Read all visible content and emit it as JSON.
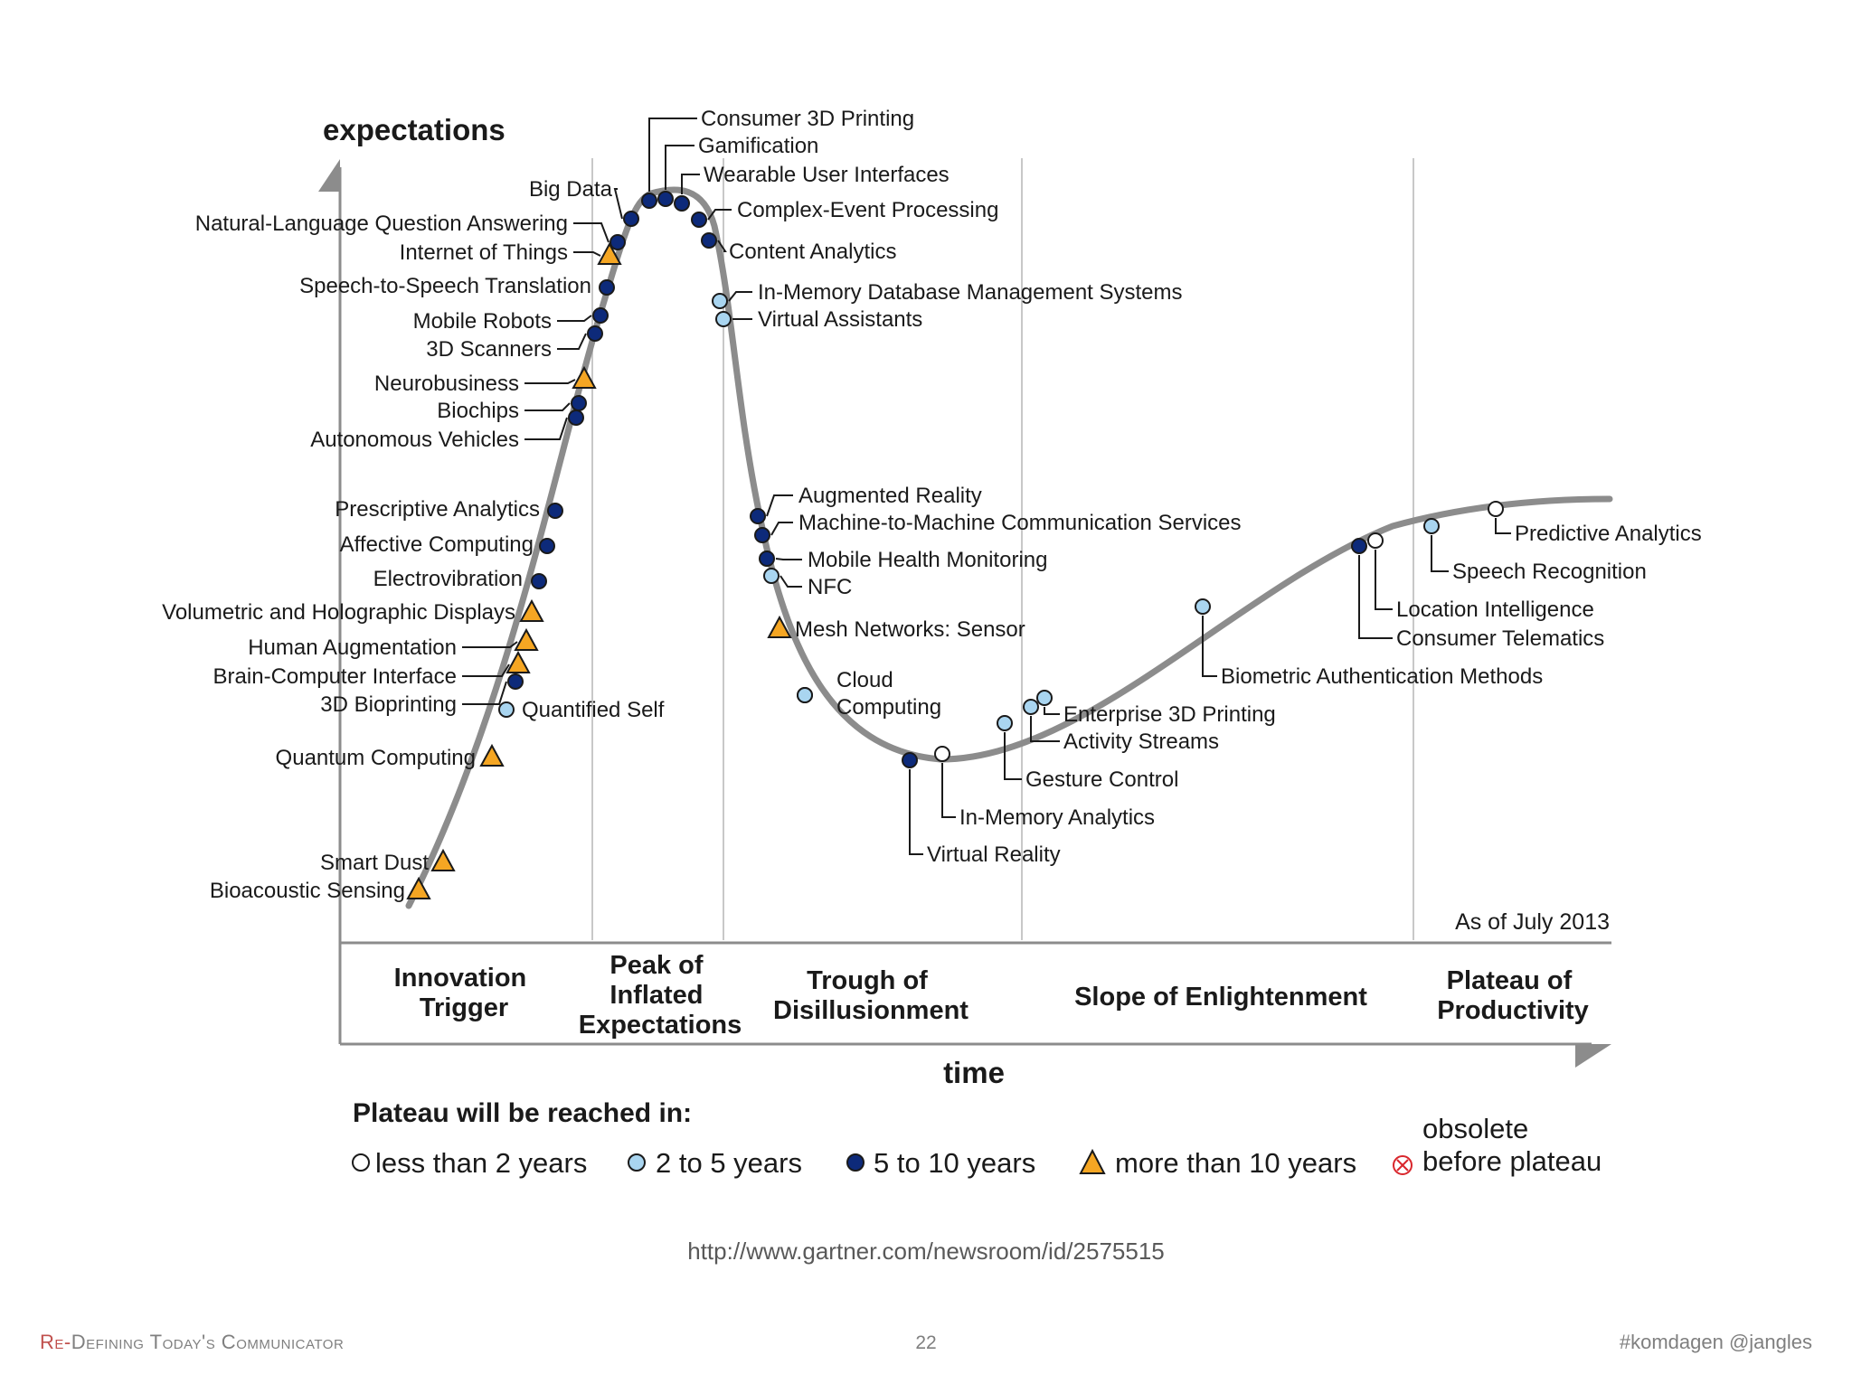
{
  "diagram": {
    "y_axis_label": "expectations",
    "x_axis_label": "time",
    "as_of": "As of July 2013",
    "phases": [
      {
        "line1": "Innovation",
        "line2": "Trigger",
        "line3": ""
      },
      {
        "line1": "Peak of",
        "line2": "Inflated",
        "line3": "Expectations"
      },
      {
        "line1": "Trough of",
        "line2": "Disillusionment",
        "line3": ""
      },
      {
        "line1": "Slope of Enlightenment",
        "line2": "",
        "line3": ""
      },
      {
        "line1": "Plateau of",
        "line2": "Productivity",
        "line3": ""
      }
    ],
    "technologies": [
      {
        "name": "Bioacoustic Sensing",
        "category": "more than 10 years"
      },
      {
        "name": "Smart Dust",
        "category": "more than 10 years"
      },
      {
        "name": "Quantum Computing",
        "category": "more than 10 years"
      },
      {
        "name": "3D Bioprinting",
        "category": "5 to 10 years"
      },
      {
        "name": "Quantified Self",
        "category": "2 to 5 years"
      },
      {
        "name": "Brain-Computer Interface",
        "category": "more than 10 years"
      },
      {
        "name": "Human Augmentation",
        "category": "more than 10 years"
      },
      {
        "name": "Volumetric and Holographic Displays",
        "category": "more than 10 years"
      },
      {
        "name": "Electrovibration",
        "category": "5 to 10 years"
      },
      {
        "name": "Affective Computing",
        "category": "5 to 10 years"
      },
      {
        "name": "Prescriptive Analytics",
        "category": "5 to 10 years"
      },
      {
        "name": "Autonomous Vehicles",
        "category": "5 to 10 years"
      },
      {
        "name": "Biochips",
        "category": "5 to 10 years"
      },
      {
        "name": "Neurobusiness",
        "category": "more than 10 years"
      },
      {
        "name": "3D Scanners",
        "category": "5 to 10 years"
      },
      {
        "name": "Mobile Robots",
        "category": "5 to 10 years"
      },
      {
        "name": "Speech-to-Speech Translation",
        "category": "5 to 10 years"
      },
      {
        "name": "Internet of Things",
        "category": "more than 10 years"
      },
      {
        "name": "Natural-Language Question Answering",
        "category": "5 to 10 years"
      },
      {
        "name": "Big Data",
        "category": "5 to 10 years"
      },
      {
        "name": "Consumer 3D Printing",
        "category": "5 to 10 years"
      },
      {
        "name": "Gamification",
        "category": "5 to 10 years"
      },
      {
        "name": "Wearable User Interfaces",
        "category": "5 to 10 years"
      },
      {
        "name": "Complex-Event Processing",
        "category": "5 to 10 years"
      },
      {
        "name": "Content Analytics",
        "category": "5 to 10 years"
      },
      {
        "name": "In-Memory Database Management Systems",
        "category": "2 to 5 years"
      },
      {
        "name": "Virtual Assistants",
        "category": "2 to 5 years"
      },
      {
        "name": "Augmented Reality",
        "category": "5 to 10 years"
      },
      {
        "name": "Machine-to-Machine Communication Services",
        "category": "5 to 10 years"
      },
      {
        "name": "Mobile Health Monitoring",
        "category": "5 to 10 years"
      },
      {
        "name": "NFC",
        "category": "2 to 5 years"
      },
      {
        "name": "Mesh Networks: Sensor",
        "category": "more than 10 years"
      },
      {
        "name": "Cloud",
        "category": "2 to 5 years"
      },
      {
        "name": "Computing",
        "category": "2 to 5 years"
      },
      {
        "name": "Virtual Reality",
        "category": "5 to 10 years"
      },
      {
        "name": "In-Memory Analytics",
        "category": "less than 2 years"
      },
      {
        "name": "Gesture Control",
        "category": "2 to 5 years"
      },
      {
        "name": "Activity Streams",
        "category": "2 to 5 years"
      },
      {
        "name": "Enterprise 3D Printing",
        "category": "2 to 5 years"
      },
      {
        "name": "Biometric Authentication Methods",
        "category": "2 to 5 years"
      },
      {
        "name": "Consumer Telematics",
        "category": "5 to 10 years"
      },
      {
        "name": "Location Intelligence",
        "category": "less than 2 years"
      },
      {
        "name": "Speech Recognition",
        "category": "2 to 5 years"
      },
      {
        "name": "Predictive Analytics",
        "category": "less than 2 years"
      }
    ],
    "legend": {
      "title": "Plateau will be reached in:",
      "items": [
        {
          "label": "less than 2 years",
          "label2": "",
          "symbol": "white-circle-icon"
        },
        {
          "label": "2 to 5 years",
          "label2": "",
          "symbol": "light-blue-circle-icon"
        },
        {
          "label": "5 to 10 years",
          "label2": "",
          "symbol": "dark-blue-circle-icon"
        },
        {
          "label": "more than 10 years",
          "label2": "",
          "symbol": "orange-triangle-icon"
        },
        {
          "label": "obsolete",
          "label2": "before plateau",
          "symbol": "red-crossed-circle-icon"
        }
      ]
    },
    "colors": {
      "curve": "#8c8c8c",
      "less_than_2": "#ffffff",
      "two_to_five": "#a9d5f0",
      "five_to_ten": "#0d2a7a",
      "more_than_10": "#f5a623",
      "obsolete": "#d9262c"
    }
  },
  "source_url": "http://www.gartner.com/newsroom/id/2575515",
  "footer": {
    "left_accent": "Re-",
    "left": "Defining Today's Communicator",
    "page_number": "22",
    "right": "#komdagen @jangles"
  }
}
